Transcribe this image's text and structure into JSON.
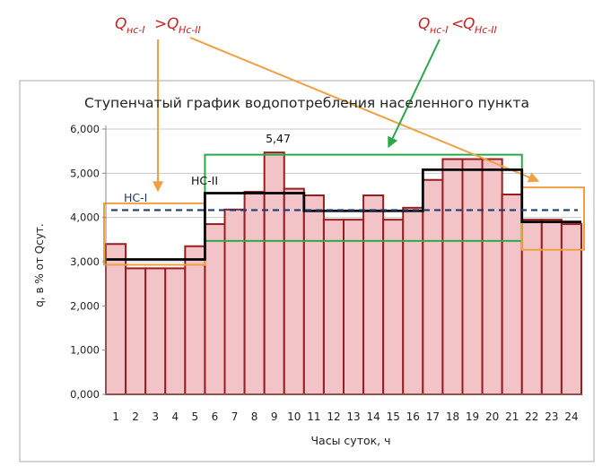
{
  "chart_data": {
    "type": "bar",
    "title": "Ступенчатый график водопотребления населенного пункта",
    "xlabel": "Часы суток, ч",
    "ylabel": "q, в % от Qсут.",
    "ylim": [
      0,
      6
    ],
    "y_ticks": [
      "0,000",
      "1,000",
      "2,000",
      "3,000",
      "4,000",
      "5,000",
      "6,000"
    ],
    "grid": true,
    "categories": [
      "1",
      "2",
      "3",
      "4",
      "5",
      "6",
      "7",
      "8",
      "9",
      "10",
      "11",
      "12",
      "13",
      "14",
      "15",
      "16",
      "17",
      "18",
      "19",
      "20",
      "21",
      "22",
      "23",
      "24"
    ],
    "series": [
      {
        "type": "bar",
        "values": [
          3.4,
          2.85,
          2.85,
          2.85,
          3.35,
          3.85,
          4.18,
          4.58,
          5.47,
          4.65,
          4.5,
          3.95,
          3.95,
          4.5,
          3.95,
          4.22,
          4.85,
          5.32,
          5.32,
          5.32,
          4.52,
          3.95,
          3.95,
          3.85
        ],
        "color": "#f2c4c8",
        "edge_color": "#9b1c1c"
      },
      {
        "name": "НС-II",
        "type": "step",
        "values": [
          3.05,
          3.05,
          3.05,
          3.05,
          3.05,
          4.55,
          4.55,
          4.55,
          4.55,
          4.55,
          4.15,
          4.15,
          4.15,
          4.15,
          4.15,
          4.15,
          5.08,
          5.08,
          5.08,
          5.08,
          5.08,
          3.9,
          3.9,
          3.9
        ],
        "color": "#000000"
      },
      {
        "name": "НС-I",
        "type": "hline",
        "value": 4.167,
        "color": "#1f3a6e"
      }
    ],
    "annotations": {
      "peak_label": "5,47",
      "ns1_label": "НС-I",
      "ns2_label": "НС-II",
      "formula_left": {
        "q": "Q",
        "sub1": "нс-I",
        "op": ">",
        "sub2": "Нс-II"
      },
      "formula_right": {
        "q": "Q",
        "sub1": "нс-I",
        "op": "<",
        "sub2": "Нс-II"
      }
    },
    "colors": {
      "orange": "#f0a040",
      "green": "#2aa84a",
      "formula_red": "#cc1f1f",
      "label_blue": "#1f3a6e"
    }
  }
}
